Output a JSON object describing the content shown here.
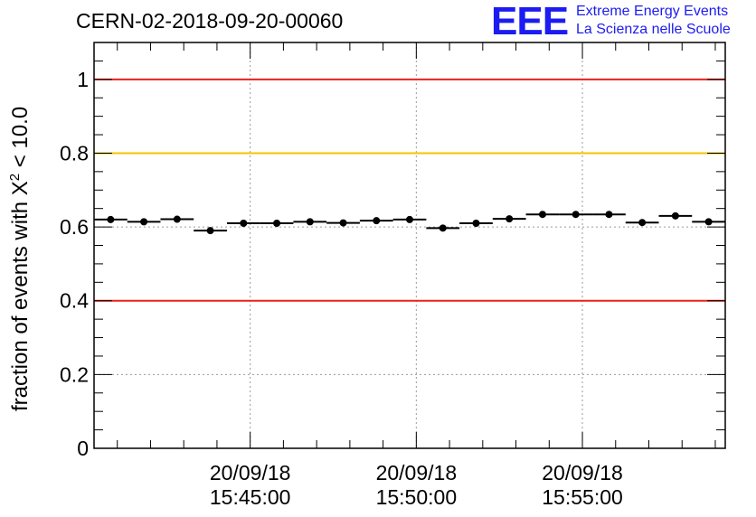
{
  "header": {
    "run_id": "CERN-02-2018-09-20-00060",
    "logo_mark": "EEE",
    "logo_line1": "Extreme Energy Events",
    "logo_line2": "La Scienza nelle Scuole"
  },
  "chart_data": {
    "type": "scatter",
    "title": "CERN-02-2018-09-20-00060",
    "ylabel_prefix": "fraction of events with X",
    "ylabel_sup": "2",
    "ylabel_suffix": " < 10.0",
    "ylim": [
      0,
      1.1
    ],
    "yticks": [
      {
        "value": 0,
        "label": "0"
      },
      {
        "value": 0.2,
        "label": "0.2"
      },
      {
        "value": 0.4,
        "label": "0.4"
      },
      {
        "value": 0.6,
        "label": "0.6"
      },
      {
        "value": 0.8,
        "label": "0.8"
      },
      {
        "value": 1,
        "label": "1"
      }
    ],
    "xlim_minutes": [
      -4.7,
      14.3
    ],
    "xticks": [
      {
        "minute": 0,
        "date": "20/09/18",
        "time": "15:45:00"
      },
      {
        "minute": 5,
        "date": "20/09/18",
        "time": "15:50:00"
      },
      {
        "minute": 10,
        "date": "20/09/18",
        "time": "15:55:00"
      }
    ],
    "bin_width_minutes": 1,
    "x_start_minutes": -4.7,
    "values": [
      0.62,
      0.614,
      0.621,
      0.59,
      0.61,
      0.61,
      0.614,
      0.611,
      0.617,
      0.62,
      0.597,
      0.61,
      0.622,
      0.634,
      0.634,
      0.634,
      0.612,
      0.63,
      0.614
    ],
    "reference_lines": [
      {
        "value": 1.0,
        "color": "#e8231c"
      },
      {
        "value": 0.8,
        "color": "#f5c400"
      },
      {
        "value": 0.4,
        "color": "#e8231c"
      }
    ],
    "grid": true,
    "gridlines_y": [
      0.2,
      0.6
    ],
    "gridlines_x_minutes": [
      0,
      5,
      10
    ]
  }
}
